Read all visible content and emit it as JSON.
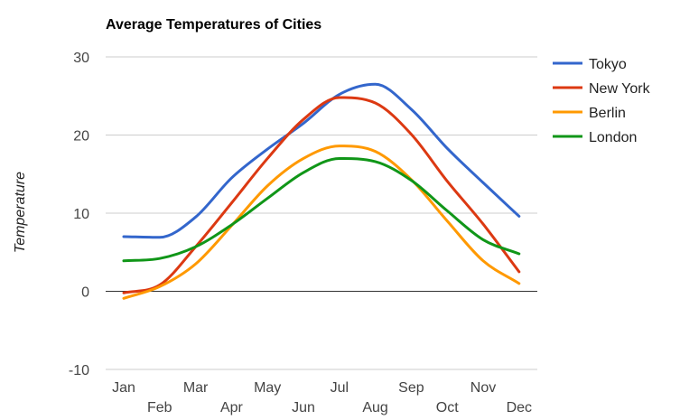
{
  "chart_data": {
    "type": "line",
    "title": "Average Temperatures of Cities",
    "xlabel": "",
    "ylabel": "Temperature",
    "categories": [
      "Jan",
      "Feb",
      "Mar",
      "Apr",
      "May",
      "Jun",
      "Jul",
      "Aug",
      "Sep",
      "Oct",
      "Nov",
      "Dec"
    ],
    "ylim": [
      -10,
      30
    ],
    "yticks": [
      -10,
      0,
      10,
      20,
      30
    ],
    "grid": true,
    "legend_position": "right",
    "series": [
      {
        "name": "Tokyo",
        "color": "#3366cc",
        "values": [
          7.0,
          6.9,
          9.5,
          14.5,
          18.2,
          21.5,
          25.2,
          26.5,
          23.3,
          18.3,
          13.9,
          9.6
        ]
      },
      {
        "name": "New York",
        "color": "#dc3912",
        "values": [
          -0.2,
          0.8,
          5.7,
          11.3,
          17.0,
          22.0,
          24.8,
          24.1,
          20.1,
          14.1,
          8.6,
          2.5
        ]
      },
      {
        "name": "Berlin",
        "color": "#ff9900",
        "values": [
          -0.9,
          0.6,
          3.5,
          8.4,
          13.5,
          17.0,
          18.6,
          17.9,
          14.3,
          9.0,
          3.9,
          1.0
        ]
      },
      {
        "name": "London",
        "color": "#109618",
        "values": [
          3.9,
          4.2,
          5.7,
          8.5,
          11.9,
          15.2,
          17.0,
          16.6,
          14.2,
          10.3,
          6.6,
          4.8
        ]
      }
    ]
  }
}
